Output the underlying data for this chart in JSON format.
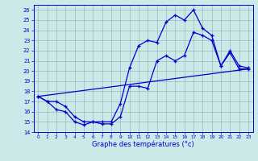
{
  "xlabel": "Graphe des températures (°c)",
  "bg_color": "#cce8e8",
  "grid_color": "#99bbbb",
  "line_color": "#0000cc",
  "yticks": [
    14,
    15,
    16,
    17,
    18,
    19,
    20,
    21,
    22,
    23,
    24,
    25,
    26
  ],
  "xticks": [
    0,
    1,
    2,
    3,
    4,
    5,
    6,
    7,
    8,
    9,
    10,
    11,
    12,
    13,
    14,
    15,
    16,
    17,
    18,
    19,
    20,
    21,
    22,
    23
  ],
  "curve_top_x": [
    0,
    1,
    2,
    3,
    4,
    5,
    6,
    7,
    8,
    9,
    10,
    11,
    12,
    13,
    14,
    15,
    16,
    17,
    18,
    19,
    20,
    21,
    22,
    23
  ],
  "curve_top_y": [
    17.5,
    17.0,
    17.0,
    16.5,
    15.5,
    15.0,
    15.0,
    15.0,
    15.0,
    16.8,
    20.3,
    22.5,
    23.0,
    22.8,
    24.8,
    25.5,
    25.0,
    26.0,
    24.2,
    23.5,
    20.5,
    22.0,
    20.5,
    20.3
  ],
  "curve_bot_x": [
    0,
    1,
    2,
    3,
    4,
    5,
    6,
    7,
    8,
    9,
    10,
    11,
    12,
    13,
    14,
    15,
    16,
    17,
    18,
    19,
    20,
    21,
    22,
    23
  ],
  "curve_bot_y": [
    17.5,
    17.0,
    16.2,
    16.0,
    15.0,
    14.7,
    15.0,
    14.8,
    14.8,
    15.5,
    18.5,
    18.5,
    18.3,
    21.0,
    21.5,
    21.0,
    21.5,
    23.8,
    23.5,
    23.0,
    20.5,
    21.8,
    20.2,
    20.2
  ],
  "line_x": [
    0,
    23
  ],
  "line_y": [
    17.5,
    20.2
  ]
}
